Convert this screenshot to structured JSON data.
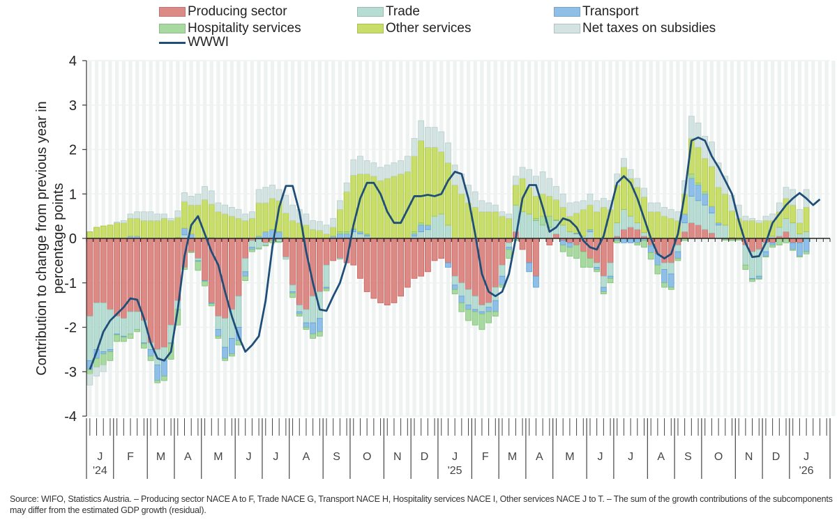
{
  "legend": [
    {
      "key": "producing",
      "label": "Producing sector",
      "color": "#dc8a86",
      "type": "bar"
    },
    {
      "key": "trade",
      "label": "Trade",
      "color": "#b7dcd2",
      "type": "bar"
    },
    {
      "key": "transport",
      "label": "Transport",
      "color": "#8fbfe6",
      "type": "bar"
    },
    {
      "key": "hospitality",
      "label": "Hospitality services",
      "color": "#a8d9a0",
      "type": "bar"
    },
    {
      "key": "other",
      "label": "Other services",
      "color": "#c8de6a",
      "type": "bar"
    },
    {
      "key": "taxes",
      "label": "Net taxes on subsidies",
      "color": "#d3e3e1",
      "type": "bar"
    },
    {
      "key": "wwwi",
      "label": "WWWI",
      "color": "#1f4e79",
      "type": "line"
    }
  ],
  "source_note": "Source: WIFO, Statistics Austria. – Producing sector NACE A to F, Trade NACE G, Transport NACE H, Hospitality services NACE I, Other services NACE J to T. – The sum of the growth contributions of the subcomponents may differ from the estimated GDP growth (residual).",
  "chart_data": {
    "type": "bar",
    "stacked": true,
    "title": "",
    "xlabel": "",
    "ylabel": "Contribution to change from previous year in percentage points",
    "ylim": [
      -4,
      4
    ],
    "yticks": [
      4,
      3,
      2,
      1,
      0,
      -1,
      -2,
      -3,
      -4
    ],
    "grid": true,
    "legend_position": "top",
    "x_unit": "week",
    "month_labels": [
      {
        "label": "J",
        "year": "'24",
        "start_week": 0,
        "weeks": 4
      },
      {
        "label": "F",
        "year": "",
        "start_week": 4,
        "weeks": 5
      },
      {
        "label": "M",
        "year": "",
        "start_week": 9,
        "weeks": 4
      },
      {
        "label": "A",
        "year": "",
        "start_week": 13,
        "weeks": 4
      },
      {
        "label": "M",
        "year": "",
        "start_week": 17,
        "weeks": 5
      },
      {
        "label": "J",
        "year": "",
        "start_week": 22,
        "weeks": 4
      },
      {
        "label": "J",
        "year": "",
        "start_week": 26,
        "weeks": 4
      },
      {
        "label": "A",
        "year": "",
        "start_week": 30,
        "weeks": 5
      },
      {
        "label": "S",
        "year": "",
        "start_week": 35,
        "weeks": 4
      },
      {
        "label": "O",
        "year": "",
        "start_week": 39,
        "weeks": 5
      },
      {
        "label": "N",
        "year": "",
        "start_week": 44,
        "weeks": 4
      },
      {
        "label": "D",
        "year": "",
        "start_week": 48,
        "weeks": 4
      },
      {
        "label": "J",
        "year": "'25",
        "start_week": 52,
        "weeks": 5
      },
      {
        "label": "F",
        "year": "",
        "start_week": 57,
        "weeks": 4
      },
      {
        "label": "M",
        "year": "",
        "start_week": 61,
        "weeks": 4
      },
      {
        "label": "A",
        "year": "",
        "start_week": 65,
        "weeks": 4
      },
      {
        "label": "M",
        "year": "",
        "start_week": 69,
        "weeks": 5
      },
      {
        "label": "J",
        "year": "",
        "start_week": 74,
        "weeks": 4
      },
      {
        "label": "J",
        "year": "",
        "start_week": 78,
        "weeks": 5
      },
      {
        "label": "A",
        "year": "",
        "start_week": 83,
        "weeks": 4
      },
      {
        "label": "S",
        "year": "",
        "start_week": 87,
        "weeks": 4
      },
      {
        "label": "O",
        "year": "",
        "start_week": 91,
        "weeks": 5
      },
      {
        "label": "N",
        "year": "",
        "start_week": 96,
        "weeks": 4
      },
      {
        "label": "D",
        "year": "",
        "start_week": 100,
        "weeks": 4
      },
      {
        "label": "J",
        "year": "'26",
        "start_week": 104,
        "weeks": 5
      }
    ],
    "total_weeks": 110,
    "series": [
      {
        "name": "Producing sector",
        "key": "producing",
        "values": [
          -1.75,
          -1.45,
          -1.45,
          -1.6,
          -1.75,
          -1.8,
          -1.65,
          -1.65,
          -1.85,
          -2.35,
          -2.5,
          -2.45,
          -1.95,
          -1.4,
          -0.65,
          -0.3,
          -0.45,
          -0.95,
          -1.45,
          -1.75,
          -1.8,
          -1.6,
          -1.3,
          -0.45,
          -0.05,
          -0.02,
          -0.1,
          -0.05,
          -0.02,
          -0.42,
          -1.05,
          -1.5,
          -1.6,
          -1.3,
          -1.2,
          -0.6,
          -0.5,
          -0.45,
          -0.55,
          -0.6,
          -0.9,
          -1.2,
          -1.35,
          -1.45,
          -1.5,
          -1.45,
          -1.3,
          -1.1,
          -0.9,
          -0.85,
          -0.75,
          -0.5,
          -0.45,
          -0.55,
          -0.85,
          -1.0,
          -1.15,
          -1.3,
          -1.5,
          -1.45,
          -1.1,
          -0.6,
          -0.1,
          0.15,
          -0.25,
          -0.55,
          -0.85,
          0.0,
          -0.15,
          0.1,
          -0.05,
          -0.1,
          -0.15,
          -0.3,
          -0.45,
          -0.55,
          -0.85,
          -0.55,
          0.05,
          0.2,
          0.25,
          0.2,
          0.05,
          -0.15,
          -0.35,
          -0.55,
          -0.55,
          -0.15,
          0.15,
          0.35,
          0.3,
          0.2,
          0.12,
          0.0,
          -0.02,
          -0.03,
          -0.02,
          -0.15,
          -0.3,
          -0.25,
          -0.1,
          -0.1,
          0.05,
          0.15,
          -0.1,
          -0.1,
          0.0
        ]
      },
      {
        "name": "Trade",
        "key": "trade",
        "values": [
          -1.0,
          -1.05,
          -1.1,
          -0.9,
          -0.4,
          -0.4,
          -0.5,
          -0.4,
          -0.5,
          -0.15,
          -0.35,
          -0.3,
          -0.4,
          -0.2,
          0.08,
          0.0,
          -0.05,
          0.02,
          0.02,
          -0.3,
          -0.65,
          -0.65,
          -0.7,
          -0.3,
          -0.15,
          -0.2,
          -0.05,
          0.0,
          -0.05,
          -0.05,
          -0.15,
          -0.15,
          -0.3,
          -0.6,
          -0.6,
          -0.5,
          0.0,
          -0.02,
          0.0,
          0.15,
          0.1,
          0.05,
          0.0,
          0.0,
          0.0,
          0.0,
          0.0,
          0.0,
          0.05,
          0.15,
          0.2,
          0.5,
          0.55,
          0.3,
          -0.2,
          -0.3,
          -0.35,
          -0.3,
          -0.15,
          -0.1,
          -0.3,
          -0.25,
          -0.1,
          0.6,
          0.6,
          0.55,
          0.4,
          0.3,
          0.25,
          0.3,
          0.3,
          0.15,
          0.1,
          0.05,
          0.15,
          -0.1,
          -0.25,
          -0.3,
          0.3,
          0.45,
          0.25,
          0.15,
          0.08,
          -0.02,
          0.0,
          -0.15,
          -0.25,
          -0.15,
          0.2,
          0.6,
          0.55,
          0.55,
          0.45,
          0.3,
          0.3,
          0.0,
          0.0,
          -0.45,
          -0.6,
          -0.6,
          -0.2,
          0.05,
          0.2,
          0.3,
          0.35,
          0.1,
          0.15
        ]
      },
      {
        "name": "Transport",
        "key": "transport",
        "values": [
          -0.2,
          -0.2,
          -0.05,
          -0.05,
          -0.02,
          -0.02,
          0.05,
          0.05,
          -0.02,
          -0.15,
          -0.35,
          -0.35,
          -0.02,
          0.02,
          0.15,
          0.1,
          -0.02,
          -0.02,
          -0.02,
          -0.15,
          -0.25,
          -0.35,
          -0.3,
          -0.1,
          -0.05,
          0.05,
          0.15,
          0.2,
          0.15,
          0.02,
          -0.03,
          -0.05,
          -0.1,
          -0.25,
          -0.3,
          -0.03,
          0.05,
          0.1,
          0.1,
          0.05,
          0.05,
          0.03,
          0.0,
          0.0,
          0.0,
          0.0,
          0.0,
          0.0,
          0.05,
          0.15,
          0.1,
          0.0,
          0.0,
          -0.1,
          -0.1,
          -0.15,
          -0.1,
          -0.05,
          -0.05,
          -0.1,
          -0.25,
          -0.2,
          -0.05,
          0.0,
          0.0,
          -0.2,
          -0.25,
          0.0,
          0.0,
          0.0,
          -0.1,
          -0.1,
          0.02,
          0.0,
          0.05,
          -0.05,
          -0.1,
          -0.05,
          -0.05,
          -0.1,
          -0.1,
          -0.1,
          -0.05,
          -0.15,
          -0.25,
          -0.3,
          -0.3,
          -0.15,
          0.2,
          0.4,
          0.35,
          0.25,
          0.15,
          0.05,
          0.0,
          0.02,
          0.0,
          0.0,
          -0.02,
          -0.05,
          -0.1,
          -0.05,
          0.0,
          0.0,
          -0.15,
          -0.3,
          -0.3
        ]
      },
      {
        "name": "Hospitality services",
        "key": "hospitality",
        "values": [
          -0.1,
          -0.2,
          -0.25,
          -0.2,
          -0.15,
          -0.1,
          -0.1,
          -0.05,
          -0.1,
          -0.1,
          -0.05,
          -0.1,
          -0.35,
          -0.35,
          -0.05,
          -0.02,
          -0.2,
          -0.1,
          -0.05,
          -0.05,
          -0.05,
          -0.05,
          -0.1,
          -0.1,
          -0.05,
          -0.02,
          -0.02,
          -0.05,
          -0.02,
          0.0,
          -0.1,
          -0.05,
          -0.05,
          -0.1,
          -0.1,
          -0.05,
          0.0,
          0.05,
          0.05,
          0.02,
          0.0,
          0.02,
          0.0,
          0.0,
          0.0,
          0.0,
          0.0,
          0.0,
          0.05,
          0.05,
          0.0,
          0.0,
          0.0,
          0.0,
          -0.1,
          -0.2,
          -0.25,
          -0.3,
          -0.35,
          -0.25,
          -0.1,
          -0.05,
          -0.2,
          -0.05,
          0.0,
          0.0,
          0.05,
          0.2,
          0.25,
          0.02,
          -0.15,
          -0.2,
          -0.3,
          -0.35,
          -0.2,
          -0.05,
          -0.05,
          -0.1,
          -0.05,
          0.0,
          0.0,
          -0.05,
          -0.15,
          -0.15,
          -0.2,
          -0.1,
          -0.05,
          -0.05,
          -0.05,
          0.1,
          0.05,
          0.05,
          0.0,
          0.0,
          -0.02,
          -0.02,
          -0.02,
          -0.1,
          -0.05,
          -0.02,
          -0.02,
          -0.05,
          -0.15,
          -0.1,
          -0.02,
          -0.02,
          -0.05
        ]
      },
      {
        "name": "Other services",
        "key": "other",
        "values": [
          0.15,
          0.25,
          0.28,
          0.3,
          0.35,
          0.35,
          0.4,
          0.4,
          0.4,
          0.4,
          0.4,
          0.45,
          0.4,
          0.45,
          0.6,
          0.65,
          0.75,
          0.85,
          0.75,
          0.6,
          0.55,
          0.5,
          0.45,
          0.4,
          0.45,
          0.75,
          0.65,
          0.7,
          0.7,
          0.55,
          0.4,
          0.35,
          0.3,
          0.2,
          0.18,
          0.1,
          0.2,
          0.5,
          0.9,
          1.2,
          1.3,
          1.35,
          1.4,
          1.3,
          1.35,
          1.4,
          1.45,
          1.5,
          1.7,
          1.85,
          1.75,
          1.55,
          1.4,
          1.4,
          1.2,
          1.0,
          0.8,
          0.7,
          0.6,
          0.6,
          0.6,
          0.5,
          0.45,
          0.45,
          0.75,
          0.6,
          0.5,
          0.5,
          0.45,
          0.45,
          0.4,
          0.35,
          0.45,
          0.6,
          0.55,
          0.6,
          0.7,
          0.65,
          0.85,
          0.95,
          0.85,
          0.8,
          0.8,
          0.6,
          0.6,
          0.5,
          0.45,
          0.4,
          0.45,
          0.8,
          0.8,
          0.75,
          0.9,
          0.8,
          0.7,
          0.6,
          0.45,
          0.4,
          0.4,
          0.35,
          0.4,
          0.35,
          0.35,
          0.45,
          0.4,
          0.25,
          0.55
        ]
      },
      {
        "name": "Net taxes on subsidies",
        "key": "taxes",
        "values": [
          -0.25,
          -0.2,
          -0.15,
          0.0,
          0.02,
          0.05,
          0.1,
          0.15,
          0.2,
          0.2,
          0.15,
          0.1,
          0.05,
          0.15,
          0.2,
          0.2,
          0.25,
          0.3,
          0.3,
          0.2,
          0.2,
          0.2,
          0.2,
          0.15,
          0.15,
          0.3,
          0.35,
          0.3,
          0.25,
          0.4,
          0.35,
          0.3,
          0.25,
          0.2,
          0.2,
          0.2,
          0.2,
          0.2,
          0.2,
          0.35,
          0.4,
          0.3,
          0.3,
          0.3,
          0.3,
          0.3,
          0.3,
          0.35,
          0.4,
          0.45,
          0.45,
          0.45,
          0.45,
          0.45,
          0.45,
          0.45,
          0.4,
          0.35,
          0.25,
          0.2,
          0.15,
          0.1,
          0.1,
          0.2,
          0.25,
          0.4,
          0.45,
          0.5,
          0.4,
          0.3,
          0.3,
          0.3,
          0.25,
          0.2,
          0.25,
          0.25,
          0.2,
          0.2,
          0.25,
          0.2,
          0.2,
          0.2,
          0.2,
          0.2,
          0.2,
          0.2,
          0.2,
          0.2,
          0.3,
          0.5,
          0.55,
          0.5,
          0.55,
          0.55,
          0.4,
          0.35,
          0.3,
          0.1,
          0.05,
          0.05,
          0.1,
          0.15,
          0.2,
          0.25,
          0.35,
          0.3,
          0.4
        ]
      },
      {
        "name": "WWWI",
        "key": "wwwi",
        "type": "line",
        "values": [
          -2.95,
          -2.55,
          -2.1,
          -1.85,
          -1.7,
          -1.55,
          -1.35,
          -1.38,
          -1.8,
          -2.35,
          -2.7,
          -2.75,
          -2.55,
          -1.6,
          -0.4,
          0.3,
          0.5,
          0.1,
          -0.3,
          -0.6,
          -1.2,
          -1.75,
          -2.2,
          -2.55,
          -2.4,
          -2.2,
          -1.4,
          -0.2,
          0.7,
          1.18,
          1.18,
          0.6,
          -0.3,
          -1.0,
          -1.6,
          -1.63,
          -1.3,
          -1.0,
          -0.5,
          0.3,
          0.9,
          1.25,
          1.25,
          1.0,
          0.6,
          0.35,
          0.35,
          0.65,
          0.95,
          0.95,
          0.98,
          0.95,
          1.0,
          1.3,
          1.5,
          1.45,
          0.9,
          0.1,
          -0.8,
          -1.2,
          -1.3,
          -1.2,
          -0.8,
          0.0,
          0.9,
          1.2,
          1.2,
          0.7,
          0.15,
          0.25,
          0.45,
          0.4,
          0.25,
          -0.05,
          -0.2,
          -0.25,
          0.05,
          0.65,
          1.25,
          1.4,
          1.25,
          0.9,
          0.45,
          0.0,
          -0.35,
          -0.45,
          -0.35,
          0.1,
          1.0,
          2.2,
          2.27,
          2.2,
          1.85,
          1.6,
          1.3,
          1.0,
          0.4,
          -0.1,
          -0.42,
          -0.4,
          -0.1,
          0.35,
          0.55,
          0.75,
          0.9,
          1.02,
          0.9,
          0.75,
          0.88
        ]
      }
    ]
  }
}
